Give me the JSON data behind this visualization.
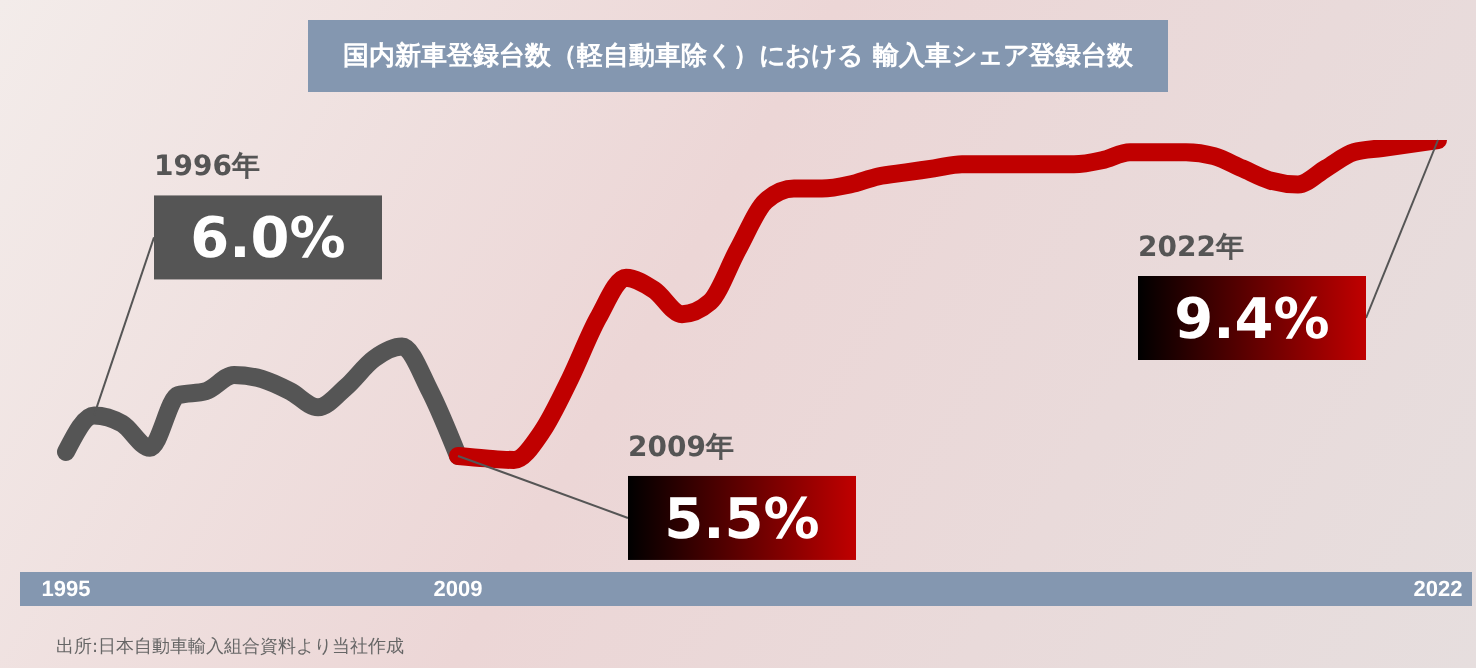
{
  "chart_data": {
    "type": "line",
    "title": "国内新車登録台数（軽自動車除く）における 輸入車シェア登録台数",
    "categories": [
      "1995",
      null,
      null,
      null,
      null,
      null,
      null,
      null,
      null,
      null,
      null,
      null,
      null,
      null,
      "2009",
      null,
      null,
      null,
      null,
      null,
      null,
      null,
      null,
      null,
      null,
      null,
      null,
      null,
      null,
      null,
      null,
      null,
      null,
      null,
      null,
      null,
      null,
      null,
      null,
      null,
      null,
      null,
      null,
      null,
      null,
      null,
      null,
      null,
      null,
      "2022"
    ],
    "series": [
      {
        "color": "#555555",
        "values": [
          5.55,
          6.0,
          5.9,
          5.6,
          6.25,
          6.3,
          6.5,
          6.45,
          6.3,
          6.1,
          6.35,
          6.7,
          6.85,
          6.3,
          5.5,
          null,
          null,
          null,
          null,
          null,
          null,
          null,
          null,
          null,
          null,
          null,
          null,
          null,
          null,
          null,
          null,
          null,
          null,
          null,
          null,
          null,
          null,
          null,
          null,
          null,
          null,
          null,
          null,
          null,
          null,
          null,
          null,
          null,
          null,
          null
        ],
        "value_labels": [
          null,
          "6.0%",
          null,
          null,
          null,
          null,
          null,
          null,
          null,
          null,
          null,
          null,
          null,
          null,
          null,
          null,
          null,
          null,
          null,
          null,
          null,
          null,
          null,
          null,
          null,
          null,
          null,
          null,
          null,
          null,
          null,
          null,
          null,
          null,
          null,
          null,
          null,
          null,
          null,
          null,
          null,
          null,
          null,
          null,
          null,
          null,
          null,
          null,
          null,
          null
        ]
      },
      {
        "color": "#c00000",
        "values": [
          null,
          null,
          null,
          null,
          null,
          null,
          null,
          null,
          null,
          null,
          null,
          null,
          null,
          null,
          5.5,
          5.47,
          5.45,
          5.8,
          6.45,
          7.2,
          7.7,
          7.55,
          7.25,
          7.4,
          8.05,
          8.65,
          8.8,
          8.8,
          8.85,
          8.95,
          9.0,
          9.05,
          9.1,
          9.1,
          9.1,
          9.1,
          9.1,
          9.15,
          9.25,
          9.25,
          9.25,
          9.2,
          9.05,
          8.9,
          8.85,
          9.05,
          9.25,
          9.3,
          9.35,
          9.4
        ],
        "value_labels": [
          null,
          null,
          null,
          null,
          null,
          null,
          null,
          null,
          null,
          null,
          null,
          null,
          null,
          null,
          "5.5%",
          null,
          null,
          null,
          null,
          null,
          null,
          null,
          null,
          null,
          null,
          null,
          null,
          null,
          null,
          null,
          null,
          null,
          null,
          null,
          null,
          null,
          null,
          null,
          null,
          null,
          null,
          null,
          null,
          null,
          null,
          null,
          null,
          null,
          null,
          "9.4%"
        ]
      }
    ],
    "annotations": [
      "1996年",
      "2009年",
      "2022年",
      "出所:日本自動車輸入組合資料より当社作成"
    ],
    "grid": false,
    "legend": false,
    "marker": "none",
    "line_style": "solid"
  }
}
